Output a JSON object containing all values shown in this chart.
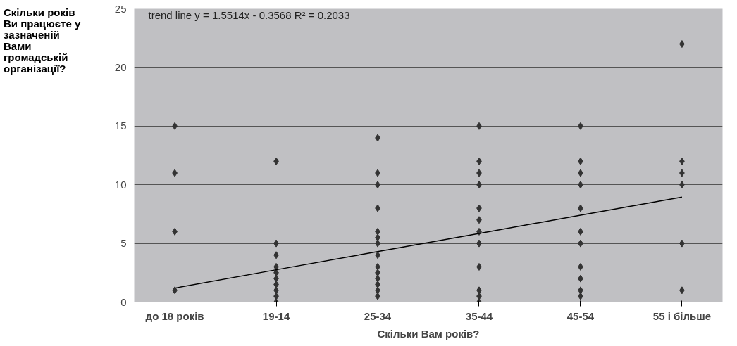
{
  "chart_data": {
    "type": "scatter",
    "ylabel": "Скільки років Ви працюєте у зазначеній Вами громадській організації?",
    "xlabel": "Скільки Вам років?",
    "categories": [
      "до 18 років",
      "19-14",
      "25-34",
      "35-44",
      "45-54",
      "55 і більше"
    ],
    "ylim": [
      0,
      25
    ],
    "yticks": [
      0,
      5,
      10,
      15,
      20,
      25
    ],
    "grid": "y",
    "annotations": [
      "trend line y = 1.5514x - 0.3568   R² = 0.2033"
    ],
    "series": [
      {
        "color": "#333333",
        "marker": "diamond",
        "x": [
          "до 18 років",
          "до 18 років",
          "до 18 років",
          "до 18 років",
          "19-14",
          "19-14",
          "19-14",
          "19-14",
          "19-14",
          "19-14",
          "19-14",
          "19-14",
          "19-14",
          "19-14",
          "25-34",
          "25-34",
          "25-34",
          "25-34",
          "25-34",
          "25-34",
          "25-34",
          "25-34",
          "25-34",
          "25-34",
          "25-34",
          "25-34",
          "25-34",
          "25-34",
          "35-44",
          "35-44",
          "35-44",
          "35-44",
          "35-44",
          "35-44",
          "35-44",
          "35-44",
          "35-44",
          "35-44",
          "35-44",
          "35-44",
          "45-54",
          "45-54",
          "45-54",
          "45-54",
          "45-54",
          "45-54",
          "45-54",
          "45-54",
          "45-54",
          "45-54",
          "45-54",
          "55 і більше",
          "55 і більше",
          "55 і більше",
          "55 і більше",
          "55 і більше",
          "55 і більше"
        ],
        "values": [
          15,
          11,
          6,
          1,
          12,
          5,
          4,
          3,
          2.5,
          2,
          1.5,
          1,
          0.5,
          0,
          14,
          11,
          10,
          8,
          6,
          5.5,
          5,
          4,
          3,
          2.5,
          2,
          1.5,
          1,
          0.5,
          15,
          12,
          11,
          10,
          8,
          7,
          6,
          5,
          3,
          1,
          0.5,
          0,
          15,
          12,
          11,
          10,
          8,
          6,
          5,
          3,
          2,
          1,
          0.5,
          22,
          12,
          11,
          10,
          5,
          1
        ]
      },
      {
        "type": "line",
        "color": "#000000",
        "marker": "none",
        "line_style": "solid",
        "x": [
          "до 18 років",
          "19-14",
          "25-34",
          "35-44",
          "45-54",
          "55 і більше"
        ],
        "values": [
          1.19,
          2.75,
          4.3,
          5.85,
          7.4,
          8.95
        ]
      }
    ]
  }
}
